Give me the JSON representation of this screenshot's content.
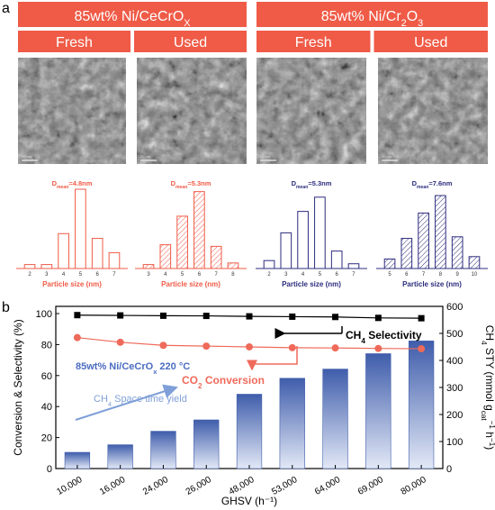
{
  "panel_a": {
    "label": "a",
    "groups": [
      {
        "title_main": "85wt% Ni/CeCrO",
        "title_sub": "X",
        "title_tail": "",
        "color": "#ef5b47",
        "columns": [
          "Fresh",
          "Used"
        ]
      },
      {
        "title_main": "85wt% Ni/Cr",
        "title_sub": "2",
        "title_tail": "O",
        "title_sub2": "3",
        "color": "#ef5b47",
        "columns": [
          "Fresh",
          "Used"
        ]
      }
    ],
    "scale_bars": [
      "20 nm",
      "20 nm",
      "20 nm",
      "20 nm"
    ]
  },
  "histograms": [
    {
      "dmean": "=4.8nm",
      "xlabel": "Particle size (nm)",
      "color": "#ef5b47",
      "hatched": false,
      "ticks": [
        "2",
        "3",
        "4",
        "5",
        "6",
        "7"
      ],
      "values": [
        0.05,
        0.05,
        0.44,
        1.0,
        0.38,
        0.2
      ]
    },
    {
      "dmean": "=5.3nm",
      "xlabel": "Particle size (nm)",
      "color": "#ef5b47",
      "hatched": true,
      "ticks": [
        "3",
        "4",
        "5",
        "6",
        "7",
        "8"
      ],
      "values": [
        0.05,
        0.3,
        0.66,
        0.97,
        0.28,
        0.07
      ]
    },
    {
      "dmean": "=5.3nm",
      "xlabel": "Particle size (nm)",
      "color": "#2c2c7e",
      "hatched": false,
      "ticks": [
        "2",
        "3",
        "4",
        "5",
        "6",
        "7"
      ],
      "values": [
        0.1,
        0.45,
        0.72,
        0.9,
        0.22,
        0.06
      ]
    },
    {
      "dmean": "=7.6nm",
      "xlabel": "Particle size (nm)",
      "color": "#2c2c7e",
      "hatched": true,
      "ticks": [
        "5",
        "6",
        "7",
        "8",
        "9",
        "10"
      ],
      "values": [
        0.12,
        0.38,
        0.7,
        0.92,
        0.4,
        0.15
      ]
    }
  ],
  "dmean_prefix": "D",
  "dmean_sub": "mean",
  "chart_data": {
    "type": "bar",
    "panel_label": "b",
    "categories": [
      "10,000",
      "16,000",
      "24,000",
      "26,000",
      "48,000",
      "53,000",
      "64,000",
      "69,000",
      "80,000"
    ],
    "xlabel": "GHSV (h⁻¹)",
    "ylabel_left": "Conversion & Selectivity (%)",
    "ylabel_right_main": "CH",
    "ylabel_right_sub": "4",
    "ylabel_right_tail": " STY (mmol g",
    "ylabel_right_sub2": "cat",
    "ylabel_right_sup": "−1",
    "ylabel_right_end": " h",
    "ylabel_right_sup2": "−1",
    "ylabel_right_close": ")",
    "ylim_left": [
      0,
      100
    ],
    "ylim_right": [
      0,
      600
    ],
    "yticks_left": [
      "0",
      "20",
      "40",
      "60",
      "80",
      "100"
    ],
    "yticks_right": [
      "0",
      "100",
      "200",
      "300",
      "400",
      "500",
      "600"
    ],
    "series": [
      {
        "name": "CH4 Space time yield",
        "axis": "right",
        "type": "bar",
        "values": [
          60,
          88,
          138,
          180,
          275,
          334,
          368,
          425,
          472
        ]
      },
      {
        "name": "CH4 Selectivity",
        "axis": "left",
        "type": "line",
        "values": [
          99,
          98.8,
          98.6,
          98.5,
          98.2,
          98.0,
          97.8,
          97.2,
          97.0
        ]
      },
      {
        "name": "CO2 Conversion",
        "axis": "left",
        "type": "line",
        "values": [
          84.5,
          81.5,
          79.5,
          79.0,
          78.5,
          78.0,
          77.8,
          77.5,
          77.3
        ]
      }
    ],
    "legend": {
      "selectivity": {
        "main": "CH",
        "sub": "4",
        "tail": " Selectivity"
      },
      "conversion": {
        "main": "CO",
        "sub": "2",
        "tail": " Conversion"
      },
      "sty": {
        "main": "CH",
        "sub": "4",
        "tail": " Space time yield"
      }
    },
    "annotation": {
      "main": "85wt% Ni/CeCrO",
      "sub": "x",
      "tail": " 220 °C"
    },
    "colors": {
      "bar_top": "#3f5dab",
      "bar_bottom": "#dfe5f4",
      "selectivity": "#000000",
      "conversion": "#ef6a5a",
      "annotation": "#4a6cc0",
      "arrow_sty": "#7f9fd8"
    }
  }
}
